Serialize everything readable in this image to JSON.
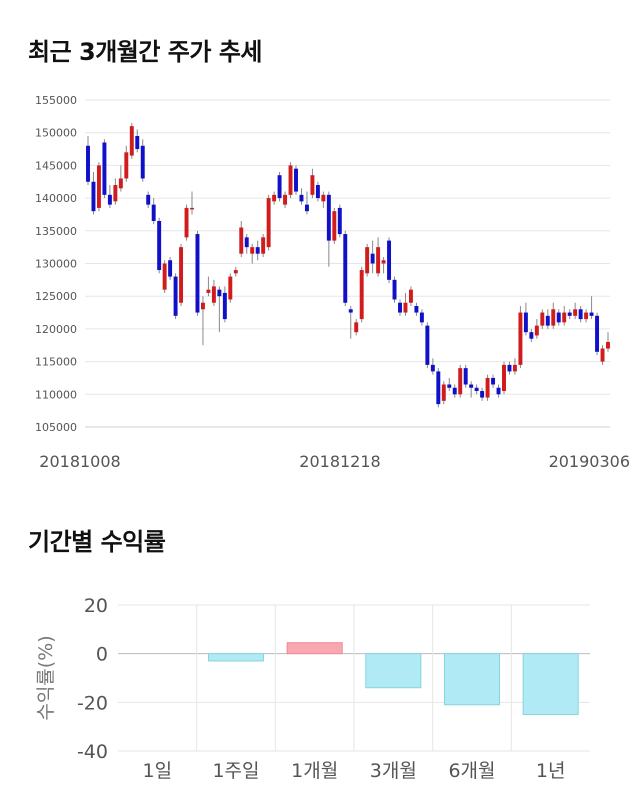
{
  "sections": {
    "price_title": "최근 3개월간 주가 추세",
    "returns_title": "기간별 수익률"
  },
  "colors": {
    "up": "#d01c1c",
    "down": "#1010c8",
    "wick": "#888888",
    "positive_bar": "#f8a8b0",
    "negative_bar": "#b0eaf4",
    "grid": "#e6e6e6"
  },
  "chart_data": [
    {
      "type": "candlestick",
      "title": "최근 3개월간 주가 추세",
      "ylim": [
        105000,
        155000
      ],
      "y_ticks": [
        105000,
        110000,
        115000,
        120000,
        125000,
        130000,
        135000,
        140000,
        145000,
        150000,
        155000
      ],
      "x_tick_labels": [
        "20181008",
        "20181218",
        "20190306"
      ],
      "candles": [
        [
          148000,
          142500,
          149500,
          142000
        ],
        [
          142500,
          138000,
          144000,
          137500
        ],
        [
          138500,
          145000,
          145500,
          138000
        ],
        [
          148500,
          140500,
          149000,
          140000
        ],
        [
          140500,
          139000,
          142000,
          138500
        ],
        [
          139500,
          142000,
          143000,
          139000
        ],
        [
          141500,
          143000,
          145000,
          141000
        ],
        [
          143000,
          147000,
          148000,
          142500
        ],
        [
          146500,
          151000,
          151500,
          146000
        ],
        [
          149500,
          147500,
          150500,
          147000
        ],
        [
          148000,
          143000,
          149000,
          142500
        ],
        [
          140500,
          139000,
          141000,
          138500
        ],
        [
          139000,
          136500,
          140000,
          136000
        ],
        [
          136500,
          129000,
          137000,
          128500
        ],
        [
          126000,
          130000,
          130500,
          125500
        ],
        [
          130500,
          128000,
          131000,
          127500
        ],
        [
          128000,
          122000,
          128500,
          121500
        ],
        [
          124000,
          132500,
          133000,
          123500
        ],
        [
          134000,
          138500,
          139000,
          133500
        ],
        [
          138500,
          138500,
          141000,
          137500
        ],
        [
          134500,
          122500,
          135000,
          122000
        ],
        [
          123000,
          124000,
          125000,
          117500
        ],
        [
          125500,
          126000,
          128000,
          125000
        ],
        [
          124000,
          126500,
          127500,
          123500
        ],
        [
          126000,
          125000,
          126500,
          119500
        ],
        [
          125500,
          121500,
          126500,
          121000
        ],
        [
          124500,
          128000,
          128500,
          124000
        ],
        [
          128500,
          129000,
          129500,
          128000
        ],
        [
          131500,
          135500,
          136500,
          131000
        ],
        [
          134000,
          132500,
          134500,
          131500
        ],
        [
          131500,
          132500,
          133000,
          130000
        ],
        [
          132500,
          131500,
          133500,
          130500
        ],
        [
          131500,
          134000,
          134500,
          131000
        ],
        [
          132500,
          140000,
          140500,
          132000
        ],
        [
          139500,
          140500,
          141000,
          139000
        ],
        [
          143500,
          140000,
          144000,
          139500
        ],
        [
          139000,
          140500,
          141000,
          138500
        ],
        [
          140500,
          145000,
          145500,
          140000
        ],
        [
          144500,
          141000,
          145000,
          140500
        ],
        [
          140500,
          139500,
          141500,
          139000
        ],
        [
          139000,
          138000,
          141000,
          137500
        ],
        [
          140500,
          143500,
          144500,
          140000
        ],
        [
          142000,
          140000,
          142500,
          139500
        ],
        [
          139500,
          140500,
          141000,
          138500
        ],
        [
          140500,
          133500,
          141000,
          129500
        ],
        [
          133500,
          138000,
          138500,
          133000
        ],
        [
          138500,
          134500,
          139000,
          134000
        ],
        [
          134500,
          124000,
          135000,
          123500
        ],
        [
          123000,
          122500,
          123500,
          118500
        ],
        [
          119500,
          121000,
          121500,
          119000
        ],
        [
          121500,
          129000,
          129500,
          121000
        ],
        [
          128500,
          132500,
          133000,
          128000
        ],
        [
          131500,
          130000,
          133500,
          128500
        ],
        [
          128500,
          132500,
          134000,
          128000
        ],
        [
          130000,
          130500,
          131000,
          128500
        ],
        [
          133500,
          127500,
          134000,
          127000
        ],
        [
          127500,
          124500,
          128000,
          124000
        ],
        [
          124000,
          122500,
          124500,
          122000
        ],
        [
          122500,
          124000,
          125500,
          122000
        ],
        [
          124000,
          126000,
          126500,
          123500
        ],
        [
          123500,
          122500,
          124000,
          122000
        ],
        [
          122500,
          121000,
          123000,
          120500
        ],
        [
          120500,
          114500,
          121000,
          114000
        ],
        [
          114500,
          113500,
          115500,
          113000
        ],
        [
          113500,
          108500,
          114000,
          108000
        ],
        [
          109000,
          111500,
          112000,
          108500
        ],
        [
          111500,
          111000,
          112500,
          110500
        ],
        [
          111000,
          110000,
          111500,
          109500
        ],
        [
          110000,
          114000,
          114500,
          109500
        ],
        [
          114000,
          111500,
          114500,
          111000
        ],
        [
          111500,
          111000,
          112000,
          109500
        ],
        [
          111000,
          110500,
          111500,
          110000
        ],
        [
          110500,
          109500,
          111000,
          109000
        ],
        [
          109500,
          112500,
          113000,
          109000
        ],
        [
          112500,
          111500,
          113000,
          111000
        ],
        [
          111000,
          110000,
          111500,
          109500
        ],
        [
          110500,
          114500,
          115000,
          110000
        ],
        [
          114500,
          113500,
          115000,
          113000
        ],
        [
          113500,
          114500,
          115500,
          113000
        ],
        [
          114500,
          122500,
          123500,
          114000
        ],
        [
          122500,
          119500,
          124000,
          119000
        ],
        [
          119500,
          118500,
          120000,
          118000
        ],
        [
          119000,
          120500,
          121500,
          118500
        ],
        [
          120500,
          122500,
          123000,
          120000
        ],
        [
          122000,
          120500,
          123000,
          120000
        ],
        [
          120500,
          123000,
          124000,
          120000
        ],
        [
          122500,
          121000,
          123000,
          120500
        ],
        [
          121000,
          122500,
          123500,
          120500
        ],
        [
          122500,
          122000,
          123000,
          121500
        ],
        [
          122000,
          123000,
          124000,
          121500
        ],
        [
          123000,
          121500,
          123500,
          121000
        ],
        [
          121500,
          122500,
          123000,
          121000
        ],
        [
          122500,
          122000,
          125000,
          121500
        ],
        [
          122000,
          116500,
          122500,
          116000
        ],
        [
          115000,
          117000,
          117500,
          114500
        ],
        [
          117000,
          118000,
          119500,
          116500
        ]
      ]
    },
    {
      "type": "bar",
      "title": "기간별 수익률",
      "ylabel": "수익률(%)",
      "ylim": [
        -40,
        20
      ],
      "y_ticks": [
        20,
        0,
        -20,
        -40
      ],
      "categories": [
        "1일",
        "1주일",
        "1개월",
        "3개월",
        "6개월",
        "1년"
      ],
      "values": [
        0,
        -3.0,
        4.5,
        -14.0,
        -21.0,
        -25.0
      ]
    }
  ]
}
